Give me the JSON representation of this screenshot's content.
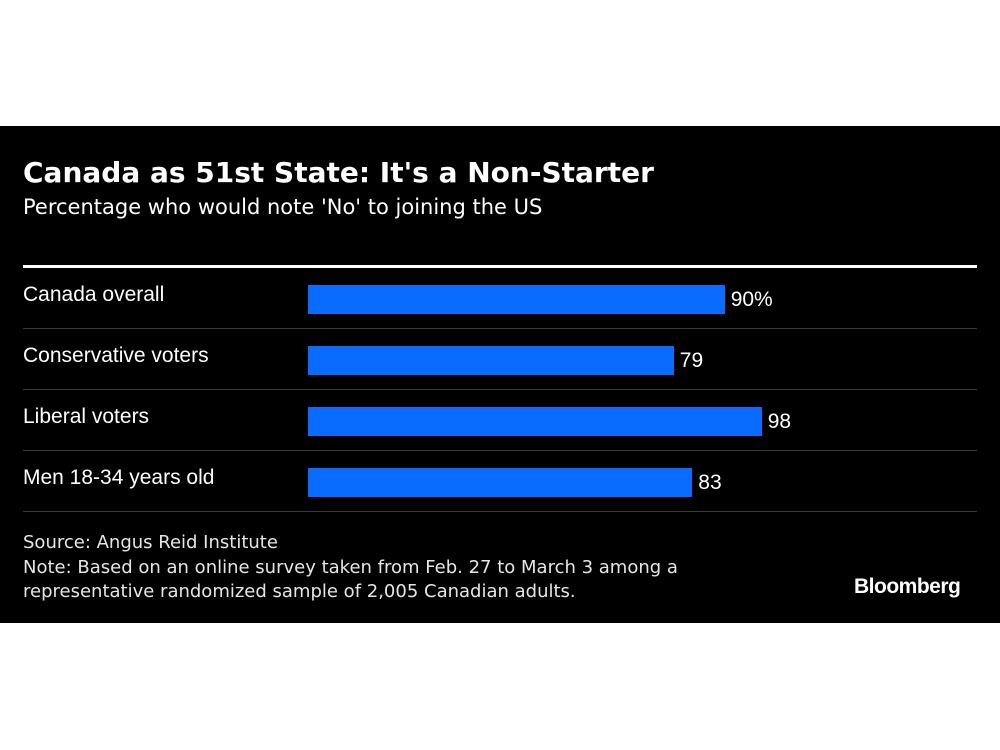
{
  "chart_data": {
    "type": "bar",
    "orientation": "horizontal",
    "title": "Canada as 51st State: It's a Non-Starter",
    "subtitle": "Percentage who would note 'No' to joining the US",
    "categories": [
      "Canada overall",
      "Conservative voters",
      "Liberal voters",
      "Men 18-34 years old"
    ],
    "values": [
      90,
      79,
      98,
      83
    ],
    "value_labels": [
      "90%",
      "79",
      "98",
      "83"
    ],
    "xlim": [
      0,
      100
    ],
    "grid": false,
    "bar_color": "#0a6cff"
  },
  "footer": {
    "source": "Source: Angus Reid Institute",
    "note": "Note: Based on an online survey taken from Feb. 27 to March 3 among a representative randomized sample of 2,005 Canadian adults.",
    "logo": "Bloomberg"
  }
}
